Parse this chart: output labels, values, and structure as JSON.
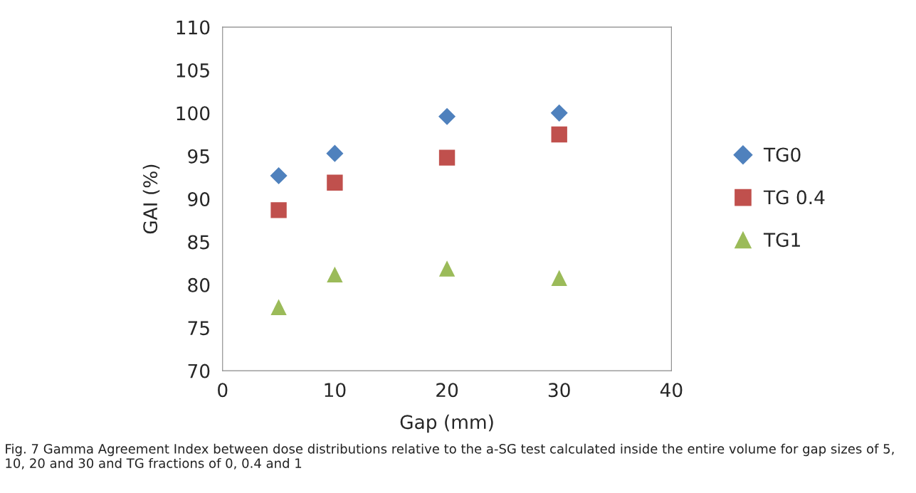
{
  "chart_data": {
    "type": "scatter",
    "xlabel": "Gap (mm)",
    "ylabel": "GAI (%)",
    "x": [
      5,
      10,
      20,
      30
    ],
    "series": [
      {
        "name": "TG0",
        "color": "#4f81bd",
        "marker": "diamond",
        "values": [
          92.7,
          95.3,
          99.6,
          100.0
        ]
      },
      {
        "name": "TG 0.4",
        "color": "#c0504d",
        "marker": "square",
        "values": [
          88.7,
          91.9,
          94.8,
          97.5
        ]
      },
      {
        "name": "TG1",
        "color": "#9bbb59",
        "marker": "triangle",
        "values": [
          77.4,
          81.2,
          81.9,
          80.8
        ]
      }
    ],
    "xlim": [
      0,
      40
    ],
    "xticks": [
      0,
      10,
      20,
      30,
      40
    ],
    "ylim": [
      70,
      110
    ],
    "yticks": [
      70,
      75,
      80,
      85,
      90,
      95,
      100,
      105,
      110
    ],
    "grid": false,
    "legend": "right",
    "annotations": [
      "Fig. 7 Gamma Agreement Index between dose distributions relative to the a-SG test calculated inside the entire volume for gap sizes of 5, 10, 20 and 30 and TG fractions of 0, 0.4 and 1"
    ]
  }
}
